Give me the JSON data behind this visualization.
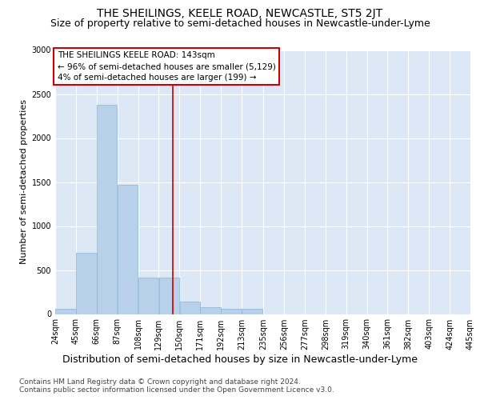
{
  "title": "THE SHEILINGS, KEELE ROAD, NEWCASTLE, ST5 2JT",
  "subtitle": "Size of property relative to semi-detached houses in Newcastle-under-Lyme",
  "xlabel_bottom": "Distribution of semi-detached houses by size in Newcastle-under-Lyme",
  "ylabel": "Number of semi-detached properties",
  "footer_line1": "Contains HM Land Registry data © Crown copyright and database right 2024.",
  "footer_line2": "Contains public sector information licensed under the Open Government Licence v3.0.",
  "annotation_title": "THE SHEILINGS KEELE ROAD: 143sqm",
  "annotation_line2": "← 96% of semi-detached houses are smaller (5,129)",
  "annotation_line3": "4% of semi-detached houses are larger (199) →",
  "property_size": 143,
  "bin_edges": [
    24,
    45,
    66,
    87,
    108,
    129,
    150,
    171,
    192,
    213,
    235,
    256,
    277,
    298,
    319,
    340,
    361,
    382,
    403,
    424,
    445
  ],
  "bar_heights": [
    55,
    700,
    2380,
    1470,
    415,
    415,
    145,
    75,
    55,
    55,
    0,
    0,
    0,
    0,
    0,
    0,
    0,
    0,
    0,
    0
  ],
  "bar_color": "#b8d0ea",
  "bar_edge_color": "#8ab4d8",
  "vline_color": "#cc0000",
  "vline_x": 143,
  "ylim": [
    0,
    3000
  ],
  "yticks": [
    0,
    500,
    1000,
    1500,
    2000,
    2500,
    3000
  ],
  "plot_bg_color": "#dce8f5",
  "title_fontsize": 10,
  "subtitle_fontsize": 9,
  "tick_fontsize": 7,
  "ylabel_fontsize": 8,
  "footer_fontsize": 6.5,
  "ann_fontsize": 7.5
}
